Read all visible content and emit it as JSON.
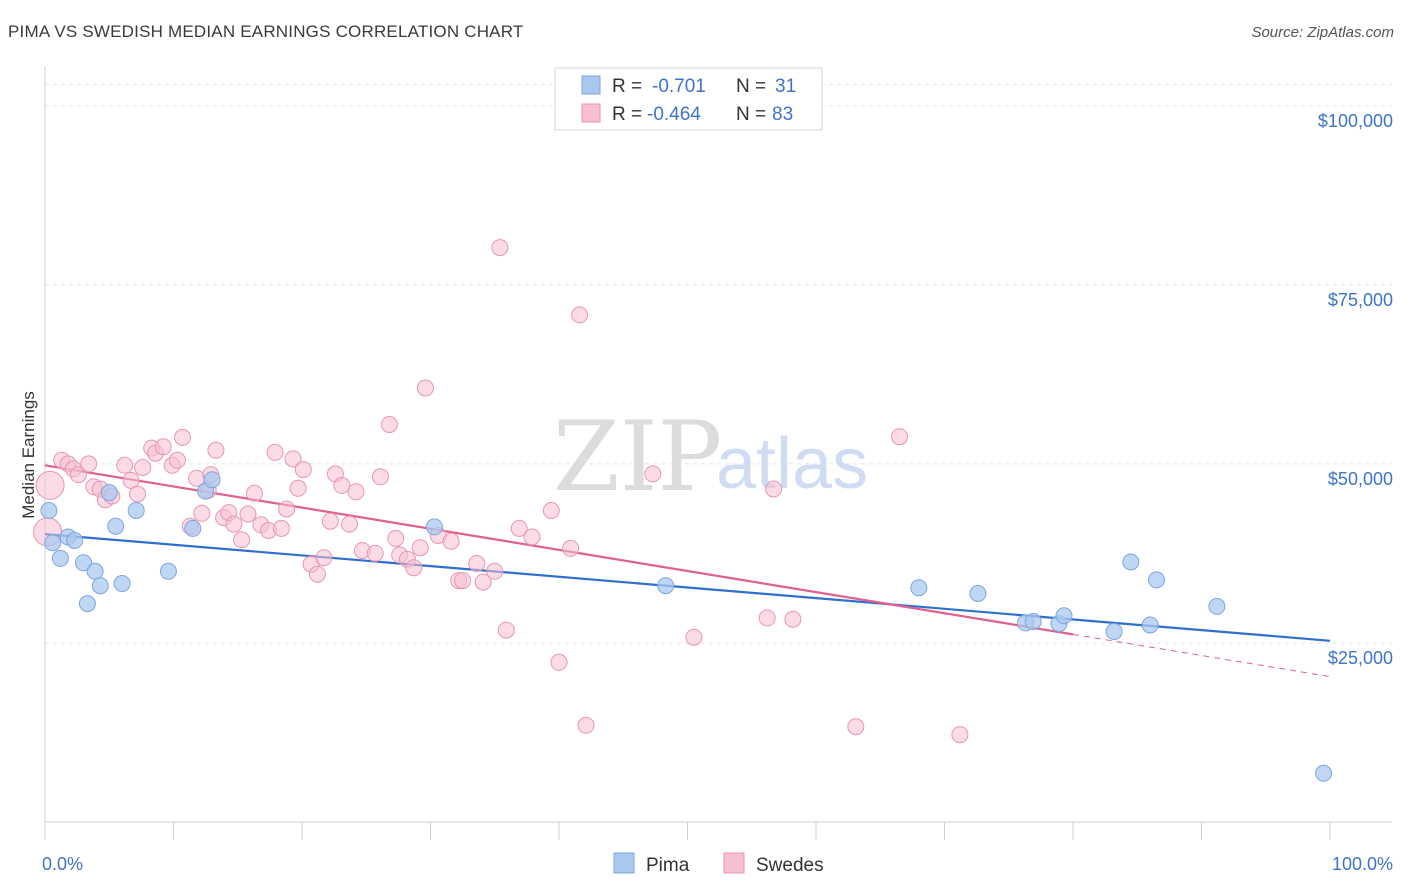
{
  "title": "PIMA VS SWEDISH MEDIAN EARNINGS CORRELATION CHART",
  "source": "Source: ZipAtlas.com",
  "watermark": {
    "zip": "ZIP",
    "atlas": "atlas"
  },
  "legend": {
    "rows": [
      {
        "r_label": "R =",
        "r_value": "-0.701",
        "n_label": "N =",
        "n_value": "31",
        "color": "#a9c8f0",
        "stroke": "#7ea6dc"
      },
      {
        "r_label": "R =",
        "r_value": "-0.464",
        "n_label": "N =",
        "n_value": "83",
        "color": "#f7bfd1",
        "stroke": "#e896b0"
      }
    ]
  },
  "bottom_legend": [
    {
      "label": "Pima",
      "color": "#a9c8f0",
      "stroke": "#7ea6dc"
    },
    {
      "label": "Swedes",
      "color": "#f7bfd1",
      "stroke": "#e896b0"
    }
  ],
  "chart_data": {
    "type": "scatter",
    "ylabel": "Median Earnings",
    "xlim": [
      0,
      100
    ],
    "ylim": [
      0,
      105000
    ],
    "x_tick_labels": [
      "0.0%",
      "100.0%"
    ],
    "y_ticks": [
      {
        "value": 25000,
        "label": "$25,000"
      },
      {
        "value": 50000,
        "label": "$50,000"
      },
      {
        "value": 75000,
        "label": "$75,000"
      },
      {
        "value": 100000,
        "label": "$100,000"
      }
    ],
    "grid": "horizontal dashed",
    "series": [
      {
        "name": "Pima",
        "color": "#a9c8f0",
        "stroke": "#7ea6dc",
        "line_color": "#2f6fd0",
        "points": [
          [
            0.3,
            43500
          ],
          [
            0.6,
            39000
          ],
          [
            1.2,
            36800
          ],
          [
            1.8,
            39800
          ],
          [
            2.3,
            39300
          ],
          [
            3.0,
            36200
          ],
          [
            3.3,
            30500
          ],
          [
            3.9,
            35000
          ],
          [
            4.3,
            33000
          ],
          [
            5.0,
            46000
          ],
          [
            5.5,
            41300
          ],
          [
            6.0,
            33300
          ],
          [
            7.1,
            43500
          ],
          [
            9.6,
            35000
          ],
          [
            11.5,
            41000
          ],
          [
            12.5,
            46200
          ],
          [
            13.0,
            47800
          ],
          [
            30.3,
            41200
          ],
          [
            48.3,
            33000
          ],
          [
            68.0,
            32700
          ],
          [
            72.6,
            31900
          ],
          [
            76.3,
            27800
          ],
          [
            76.9,
            28000
          ],
          [
            78.9,
            27700
          ],
          [
            79.3,
            28800
          ],
          [
            83.2,
            26600
          ],
          [
            84.5,
            36300
          ],
          [
            86.0,
            27500
          ],
          [
            86.5,
            33800
          ],
          [
            91.2,
            30100
          ],
          [
            99.5,
            6800
          ]
        ],
        "trend": {
          "x": [
            0,
            100
          ],
          "y": [
            40200,
            25300
          ]
        }
      },
      {
        "name": "Swedes",
        "color": "#f7bfd1",
        "stroke": "#e896b0",
        "line_color": "#e0608e",
        "points": [
          [
            0.2,
            40500
          ],
          [
            0.4,
            47000
          ],
          [
            1.3,
            50500
          ],
          [
            1.8,
            50000
          ],
          [
            2.2,
            49300
          ],
          [
            2.6,
            48500
          ],
          [
            3.4,
            50000
          ],
          [
            3.8,
            46800
          ],
          [
            4.3,
            46500
          ],
          [
            4.7,
            45000
          ],
          [
            5.2,
            45500
          ],
          [
            6.2,
            49800
          ],
          [
            6.7,
            47700
          ],
          [
            7.2,
            45800
          ],
          [
            7.6,
            49500
          ],
          [
            8.3,
            52200
          ],
          [
            8.6,
            51500
          ],
          [
            9.2,
            52400
          ],
          [
            9.9,
            49800
          ],
          [
            10.3,
            50500
          ],
          [
            10.7,
            53700
          ],
          [
            11.3,
            41300
          ],
          [
            11.8,
            48000
          ],
          [
            12.2,
            43100
          ],
          [
            12.7,
            46300
          ],
          [
            12.9,
            48500
          ],
          [
            13.3,
            51900
          ],
          [
            13.9,
            42500
          ],
          [
            14.3,
            43200
          ],
          [
            14.7,
            41600
          ],
          [
            15.3,
            39400
          ],
          [
            15.8,
            43000
          ],
          [
            16.3,
            45900
          ],
          [
            16.8,
            41500
          ],
          [
            17.4,
            40700
          ],
          [
            17.9,
            51600
          ],
          [
            18.4,
            41000
          ],
          [
            18.8,
            43700
          ],
          [
            19.3,
            50700
          ],
          [
            19.7,
            46600
          ],
          [
            20.1,
            49200
          ],
          [
            20.7,
            36000
          ],
          [
            21.2,
            34600
          ],
          [
            21.7,
            36900
          ],
          [
            22.2,
            42000
          ],
          [
            22.6,
            48600
          ],
          [
            23.1,
            47000
          ],
          [
            23.7,
            41600
          ],
          [
            24.2,
            46100
          ],
          [
            24.7,
            37900
          ],
          [
            25.7,
            37500
          ],
          [
            26.1,
            48200
          ],
          [
            26.8,
            55500
          ],
          [
            27.3,
            39600
          ],
          [
            27.6,
            37300
          ],
          [
            28.2,
            36700
          ],
          [
            28.7,
            35500
          ],
          [
            29.2,
            38300
          ],
          [
            29.6,
            60600
          ],
          [
            30.6,
            40000
          ],
          [
            31.6,
            39200
          ],
          [
            32.2,
            33700
          ],
          [
            32.5,
            33700
          ],
          [
            33.6,
            36100
          ],
          [
            34.1,
            33500
          ],
          [
            35.0,
            35000
          ],
          [
            35.4,
            80200
          ],
          [
            35.9,
            26800
          ],
          [
            36.9,
            41000
          ],
          [
            37.9,
            39800
          ],
          [
            39.4,
            43500
          ],
          [
            40.0,
            22300
          ],
          [
            40.9,
            38200
          ],
          [
            41.6,
            70800
          ],
          [
            42.1,
            13500
          ],
          [
            47.3,
            48600
          ],
          [
            50.5,
            25800
          ],
          [
            56.2,
            28500
          ],
          [
            56.7,
            46500
          ],
          [
            58.2,
            28300
          ],
          [
            63.1,
            13300
          ],
          [
            66.5,
            53800
          ],
          [
            71.2,
            12200
          ]
        ],
        "trend": {
          "x": [
            0,
            80
          ],
          "y": [
            49800,
            26200
          ]
        },
        "trend_dashed": {
          "x": [
            80,
            100
          ],
          "y": [
            26200,
            20300
          ]
        }
      }
    ]
  }
}
